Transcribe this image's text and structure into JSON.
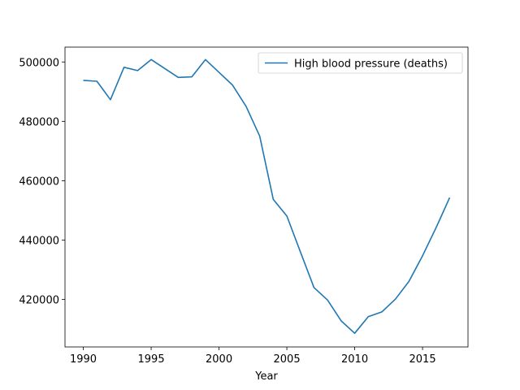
{
  "chart_data": {
    "type": "line",
    "title": "",
    "xlabel": "Year",
    "ylabel": "",
    "xlim": [
      1988.65,
      2018.35
    ],
    "ylim": [
      404000,
      505000
    ],
    "xticks": [
      1990,
      1995,
      2000,
      2005,
      2010,
      2015
    ],
    "yticks": [
      420000,
      440000,
      460000,
      480000,
      500000
    ],
    "legend_position": "top-right",
    "grid": false,
    "series": [
      {
        "name": "High blood pressure (deaths)",
        "color": "#1f77b4",
        "x": [
          1990,
          1991,
          1992,
          1993,
          1994,
          1995,
          1996,
          1997,
          1998,
          1999,
          2000,
          2001,
          2002,
          2003,
          2004,
          2005,
          2006,
          2007,
          2008,
          2009,
          2010,
          2011,
          2012,
          2013,
          2014,
          2015,
          2016,
          2017
        ],
        "y": [
          493800,
          493500,
          487300,
          498200,
          497100,
          500800,
          497800,
          494800,
          495000,
          500800,
          496500,
          492200,
          485000,
          475000,
          453700,
          448100,
          436000,
          424000,
          419800,
          412800,
          408600,
          414200,
          415800,
          420100,
          426100,
          434700,
          444200,
          454300
        ]
      }
    ]
  }
}
